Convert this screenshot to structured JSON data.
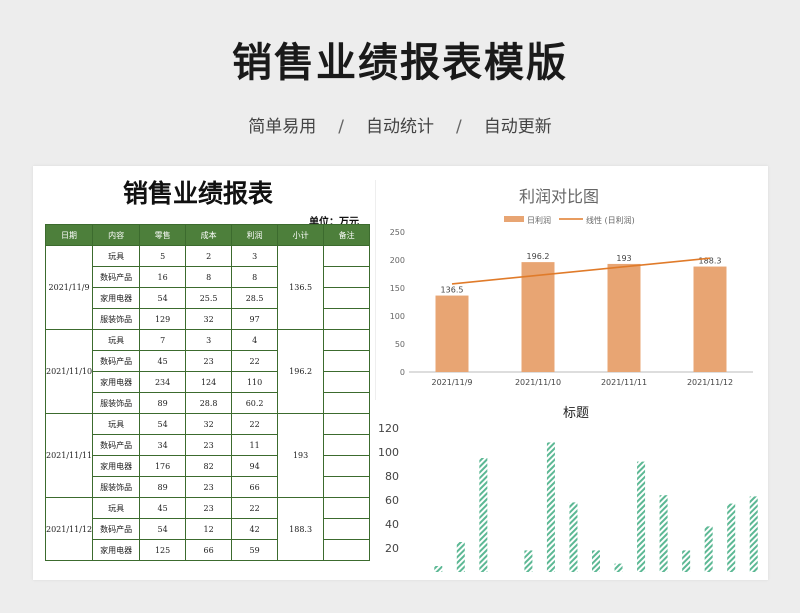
{
  "header": {
    "title": "销售业绩报表模版",
    "taglines": [
      "简单易用",
      "自动统计",
      "自动更新"
    ],
    "separator": "/"
  },
  "report": {
    "title": "销售业绩报表",
    "unit": "单位：万元",
    "columns": [
      "日期",
      "内容",
      "零售",
      "成本",
      "利润",
      "小计",
      "备注"
    ],
    "groups": [
      {
        "date": "2021/11/9",
        "subtotal": "136.5",
        "rows": [
          {
            "item": "玩具",
            "retail": "5",
            "cost": "2",
            "profit": "3"
          },
          {
            "item": "数码产品",
            "retail": "16",
            "cost": "8",
            "profit": "8"
          },
          {
            "item": "家用电器",
            "retail": "54",
            "cost": "25.5",
            "profit": "28.5"
          },
          {
            "item": "服装饰品",
            "retail": "129",
            "cost": "32",
            "profit": "97"
          }
        ]
      },
      {
        "date": "2021/11/10",
        "subtotal": "196.2",
        "rows": [
          {
            "item": "玩具",
            "retail": "7",
            "cost": "3",
            "profit": "4"
          },
          {
            "item": "数码产品",
            "retail": "45",
            "cost": "23",
            "profit": "22"
          },
          {
            "item": "家用电器",
            "retail": "234",
            "cost": "124",
            "profit": "110"
          },
          {
            "item": "服装饰品",
            "retail": "89",
            "cost": "28.8",
            "profit": "60.2"
          }
        ]
      },
      {
        "date": "2021/11/11",
        "subtotal": "193",
        "rows": [
          {
            "item": "玩具",
            "retail": "54",
            "cost": "32",
            "profit": "22"
          },
          {
            "item": "数码产品",
            "retail": "34",
            "cost": "23",
            "profit": "11"
          },
          {
            "item": "家用电器",
            "retail": "176",
            "cost": "82",
            "profit": "94"
          },
          {
            "item": "服装饰品",
            "retail": "89",
            "cost": "23",
            "profit": "66"
          }
        ]
      },
      {
        "date": "2021/11/12",
        "subtotal": "188.3",
        "rows": [
          {
            "item": "玩具",
            "retail": "45",
            "cost": "23",
            "profit": "22"
          },
          {
            "item": "数码产品",
            "retail": "54",
            "cost": "12",
            "profit": "42"
          },
          {
            "item": "家用电器",
            "retail": "125",
            "cost": "66",
            "profit": "59"
          }
        ]
      }
    ]
  },
  "chart_data": [
    {
      "type": "bar",
      "title": "利润对比图",
      "categories": [
        "2021/11/9",
        "2021/11/10",
        "2021/11/11",
        "2021/11/12"
      ],
      "series": [
        {
          "name": "日利润",
          "values": [
            136.5,
            196.2,
            193,
            188.3
          ],
          "color": "#e8a573"
        },
        {
          "name": "线性 (日利润)",
          "type": "line",
          "values": [
            157.3,
            172.6,
            187.9,
            203.2
          ],
          "color": "#e07b2a"
        }
      ],
      "data_labels": [
        "136.5",
        "196.2",
        "193",
        "188.3"
      ],
      "yticks": [
        "0",
        "50",
        "100",
        "150",
        "200",
        "250"
      ],
      "ylim": [
        0,
        250
      ],
      "grid": false,
      "legend": "top"
    },
    {
      "type": "bar",
      "title": "标题",
      "values": [
        5,
        25,
        95,
        0,
        18,
        108,
        58,
        18,
        7,
        92,
        64,
        18,
        38,
        57,
        63
      ],
      "yticks": [
        "20",
        "40",
        "60",
        "80",
        "100",
        "120"
      ],
      "ylim": [
        0,
        120
      ],
      "color": "#5cb894",
      "pattern": "diagonal-hatch"
    }
  ]
}
